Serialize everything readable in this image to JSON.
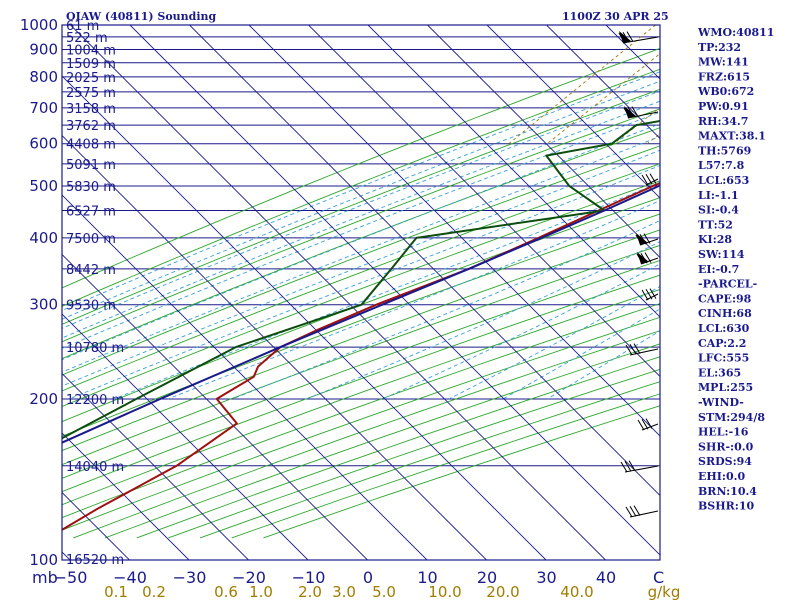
{
  "header": {
    "station": "OIAW (40811) Sounding",
    "time": "1100Z 30 APR 25"
  },
  "chart_data": {
    "type": "line",
    "title": "OIAW (40811) Sounding",
    "xlabel": "",
    "ylabel": "mb",
    "units_label": "C",
    "ylim": [
      1000,
      100
    ],
    "xlim": [
      -50,
      50
    ],
    "pressure_ticks": [
      100,
      200,
      300,
      400,
      500,
      600,
      700,
      800,
      900,
      1000
    ],
    "height_labels": [
      {
        "p": 100,
        "text": "16520 m"
      },
      {
        "p": 150,
        "text": "14040 m"
      },
      {
        "p": 200,
        "text": "12200 m"
      },
      {
        "p": 250,
        "text": "10780 m"
      },
      {
        "p": 300,
        "text": "9530 m"
      },
      {
        "p": 350,
        "text": "8442 m"
      },
      {
        "p": 400,
        "text": "7500 m"
      },
      {
        "p": 450,
        "text": "6527 m"
      },
      {
        "p": 500,
        "text": "5830 m"
      },
      {
        "p": 550,
        "text": "5091 m"
      },
      {
        "p": 600,
        "text": "4408 m"
      },
      {
        "p": 650,
        "text": "3762 m"
      },
      {
        "p": 700,
        "text": "3158 m"
      },
      {
        "p": 750,
        "text": "2575 m"
      },
      {
        "p": 800,
        "text": "2025 m"
      },
      {
        "p": 850,
        "text": "1509 m"
      },
      {
        "p": 900,
        "text": "1004 m"
      },
      {
        "p": 950,
        "text": "522 m"
      },
      {
        "p": 1000,
        "text": "61 m"
      }
    ],
    "temperature_ticks": [
      -50,
      -40,
      -30,
      -20,
      -10,
      0,
      10,
      20,
      30,
      40
    ],
    "mixing_ratio_labels": [
      "0.1",
      "0.2",
      "0.6",
      "1.0",
      "2.0",
      "3.0",
      "5.0",
      "10.0",
      "20.0",
      "40.0",
      "g/kg"
    ],
    "series": [
      {
        "name": "Temperature",
        "color": "#a01010",
        "points": [
          [
            997,
            39.5
          ],
          [
            950,
            33
          ],
          [
            900,
            27.5
          ],
          [
            850,
            21.5
          ],
          [
            800,
            15
          ],
          [
            750,
            9.5
          ],
          [
            700,
            3
          ],
          [
            650,
            0
          ],
          [
            600,
            -5.5
          ],
          [
            550,
            -9.5
          ],
          [
            500,
            -15
          ],
          [
            450,
            -20
          ],
          [
            400,
            -25.5
          ],
          [
            350,
            -32
          ],
          [
            300,
            -41.5
          ],
          [
            270,
            -47
          ],
          [
            250,
            -50.5
          ],
          [
            230,
            -51
          ],
          [
            220,
            -50
          ],
          [
            200,
            -52.5
          ],
          [
            180,
            -45
          ],
          [
            150,
            -48
          ],
          [
            125,
            -54
          ],
          [
            100,
            -60
          ]
        ]
      },
      {
        "name": "Dewpoint",
        "color": "#0d4d0d",
        "points": [
          [
            997,
            2.5
          ],
          [
            950,
            0
          ],
          [
            900,
            -4
          ],
          [
            850,
            -8
          ],
          [
            800,
            -11.5
          ],
          [
            750,
            -15.5
          ],
          [
            700,
            -14
          ],
          [
            650,
            -28
          ],
          [
            600,
            -29
          ],
          [
            570,
            -38
          ],
          [
            500,
            -29
          ],
          [
            450,
            -19
          ],
          [
            400,
            -46
          ],
          [
            350,
            -45
          ],
          [
            300,
            -44
          ],
          [
            250,
            -58
          ],
          [
            200,
            -66
          ],
          [
            150,
            -76
          ],
          [
            120,
            -80
          ],
          [
            100,
            -80
          ]
        ]
      },
      {
        "name": "Parcel",
        "color": "#1a1a8c",
        "points": [
          [
            997,
            39.5
          ],
          [
            950,
            31.5
          ],
          [
            900,
            26
          ],
          [
            850,
            20
          ],
          [
            800,
            13.5
          ],
          [
            750,
            7
          ],
          [
            700,
            0
          ],
          [
            650,
            -8
          ],
          [
            630,
            -10
          ],
          [
            555,
            -10.5
          ],
          [
            500,
            -14
          ],
          [
            450,
            -19
          ],
          [
            400,
            -25
          ],
          [
            350,
            -32
          ],
          [
            300,
            -40.5
          ],
          [
            250,
            -50.5
          ],
          [
            200,
            -62
          ],
          [
            150,
            -76
          ],
          [
            100,
            -90
          ]
        ]
      }
    ]
  },
  "indices": [
    "WMO:40811",
    "TP:232",
    "MW:141",
    "FRZ:615",
    "WB0:672",
    "PW:0.91",
    "RH:34.7",
    "MAXT:38.1",
    "TH:5769",
    "L57:7.8",
    "LCL:653",
    "LI:-1.1",
    "SI:-0.4",
    "TT:52",
    "KI:28",
    "SW:114",
    "EI:-0.7",
    "-PARCEL-",
    "CAPE:98",
    "CINH:68",
    "LCL:630",
    "CAP:2.2",
    "LFC:555",
    "EL:365",
    "MPL:255",
    "-WIND-",
    "STM:294/8",
    "HEL:-16",
    "SHR-:0.0",
    "SRDS:94",
    "EHI:0.0",
    "BRN:10.4",
    "BSHR:10"
  ],
  "colors": {
    "frame": "#1a1a8c",
    "isotherm": "#1a1a8c",
    "dry_adiabat": "#2ea82e",
    "moist_adiabat": "#3aa0d8",
    "mixing_ratio": "#a07c00",
    "wind_barb": "#000000"
  }
}
